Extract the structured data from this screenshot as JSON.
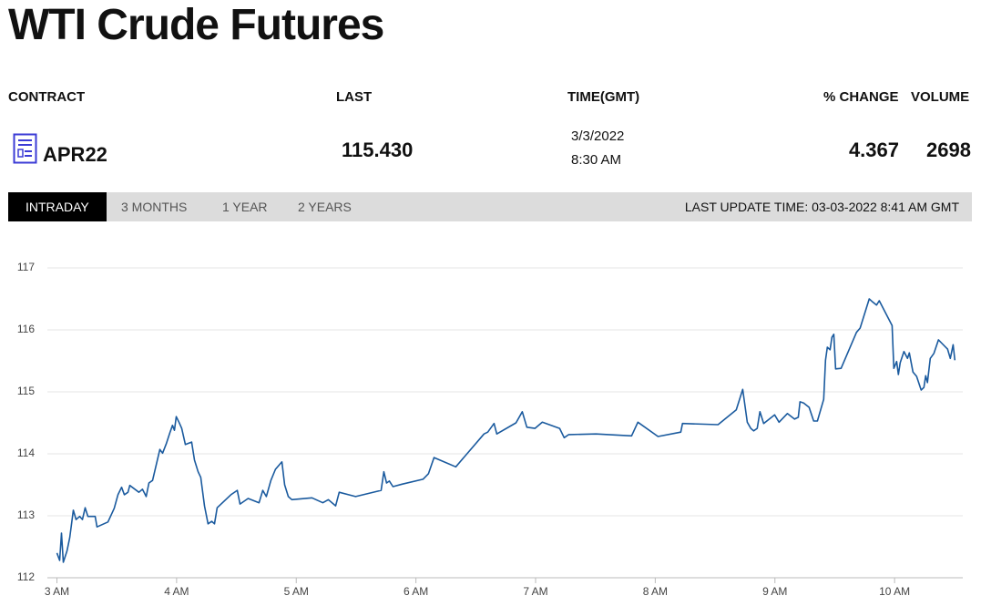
{
  "header": {
    "title": "WTI Crude Futures"
  },
  "quote": {
    "headers": [
      "CONTRACT",
      "LAST",
      "TIME(GMT)",
      "% CHANGE",
      "VOLUME"
    ],
    "contract": "APR22",
    "last": "115.430",
    "date": "3/3/2022",
    "time": "8:30 AM",
    "change": "4.367",
    "volume": "2698"
  },
  "tabs": [
    "INTRADAY",
    "3 MONTHS",
    "1 YEAR",
    "2 YEARS"
  ],
  "last_update": "LAST UPDATE TIME: 03-03-2022 8:41 AM GMT",
  "chart_data": {
    "type": "line",
    "color": "#1a5a9e",
    "grid": true,
    "xlim": [
      2.92,
      10.57
    ],
    "ylim": [
      112,
      117
    ],
    "xticks": [
      {
        "value": 3,
        "label": "3 AM"
      },
      {
        "value": 4,
        "label": "4 AM"
      },
      {
        "value": 5,
        "label": "5 AM"
      },
      {
        "value": 6,
        "label": "6 AM"
      },
      {
        "value": 7,
        "label": "7 AM"
      },
      {
        "value": 8,
        "label": "8 AM"
      },
      {
        "value": 9,
        "label": "9 AM"
      },
      {
        "value": 10,
        "label": "10 AM"
      }
    ],
    "yticks": [
      112,
      113,
      114,
      115,
      116,
      117
    ],
    "x": [
      3.0,
      3.023,
      3.038,
      3.053,
      3.084,
      3.107,
      3.137,
      3.16,
      3.19,
      3.213,
      3.236,
      3.259,
      3.32,
      3.335,
      3.426,
      3.479,
      3.51,
      3.54,
      3.563,
      3.594,
      3.609,
      3.685,
      3.715,
      3.746,
      3.769,
      3.799,
      3.83,
      3.86,
      3.883,
      3.913,
      3.944,
      3.966,
      3.982,
      3.997,
      4.02,
      4.043,
      4.073,
      4.126,
      4.149,
      4.18,
      4.202,
      4.233,
      4.263,
      4.294,
      4.317,
      4.339,
      4.454,
      4.507,
      4.53,
      4.598,
      4.689,
      4.72,
      4.75,
      4.788,
      4.826,
      4.88,
      4.903,
      4.933,
      4.963,
      5.131,
      5.222,
      5.268,
      5.329,
      5.359,
      5.496,
      5.709,
      5.732,
      5.755,
      5.778,
      5.808,
      5.884,
      6.059,
      6.105,
      6.151,
      6.333,
      6.569,
      6.6,
      6.653,
      6.676,
      6.836,
      6.889,
      6.927,
      6.995,
      7.056,
      7.201,
      7.239,
      7.277,
      7.505,
      7.802,
      7.855,
      8.023,
      8.213,
      8.228,
      8.525,
      8.677,
      8.731,
      8.769,
      8.799,
      8.822,
      8.852,
      8.875,
      8.906,
      8.997,
      9.035,
      9.104,
      9.164,
      9.195,
      9.21,
      9.24,
      9.286,
      9.324,
      9.355,
      9.408,
      9.423,
      9.438,
      9.461,
      9.476,
      9.492,
      9.507,
      9.553,
      9.682,
      9.712,
      9.788,
      9.811,
      9.849,
      9.872,
      9.979,
      9.994,
      10.017,
      10.032,
      10.047,
      10.078,
      10.108,
      10.123,
      10.154,
      10.184,
      10.222,
      10.245,
      10.26,
      10.275,
      10.298,
      10.329,
      10.367,
      10.397,
      10.443,
      10.466,
      10.489,
      10.504
    ],
    "values": [
      112.4,
      112.28,
      112.72,
      112.25,
      112.43,
      112.65,
      113.09,
      112.94,
      112.99,
      112.94,
      113.13,
      112.99,
      112.99,
      112.82,
      112.9,
      113.12,
      113.34,
      113.46,
      113.34,
      113.38,
      113.49,
      113.38,
      113.43,
      113.31,
      113.53,
      113.57,
      113.82,
      114.07,
      114.01,
      114.16,
      114.34,
      114.46,
      114.38,
      114.6,
      114.51,
      114.41,
      114.15,
      114.19,
      113.9,
      113.71,
      113.62,
      113.16,
      112.87,
      112.91,
      112.87,
      113.13,
      113.34,
      113.41,
      113.19,
      113.28,
      113.21,
      113.41,
      113.31,
      113.57,
      113.75,
      113.87,
      113.5,
      113.31,
      113.26,
      113.29,
      113.21,
      113.26,
      113.16,
      113.38,
      113.31,
      113.41,
      113.71,
      113.53,
      113.56,
      113.47,
      113.51,
      113.59,
      113.68,
      113.94,
      113.79,
      114.32,
      114.35,
      114.49,
      114.32,
      114.5,
      114.68,
      114.43,
      114.41,
      114.51,
      114.41,
      114.26,
      114.31,
      114.32,
      114.29,
      114.51,
      114.28,
      114.35,
      114.49,
      114.47,
      114.71,
      115.04,
      114.51,
      114.41,
      114.37,
      114.41,
      114.68,
      114.49,
      114.63,
      114.51,
      114.65,
      114.56,
      114.59,
      114.84,
      114.82,
      114.75,
      114.53,
      114.53,
      114.88,
      115.51,
      115.72,
      115.68,
      115.88,
      115.93,
      115.37,
      115.38,
      115.96,
      116.03,
      116.5,
      116.46,
      116.4,
      116.47,
      116.07,
      115.38,
      115.49,
      115.28,
      115.47,
      115.65,
      115.54,
      115.63,
      115.32,
      115.25,
      115.03,
      115.07,
      115.26,
      115.15,
      115.54,
      115.62,
      115.84,
      115.78,
      115.69,
      115.54,
      115.76,
      115.51
    ]
  }
}
